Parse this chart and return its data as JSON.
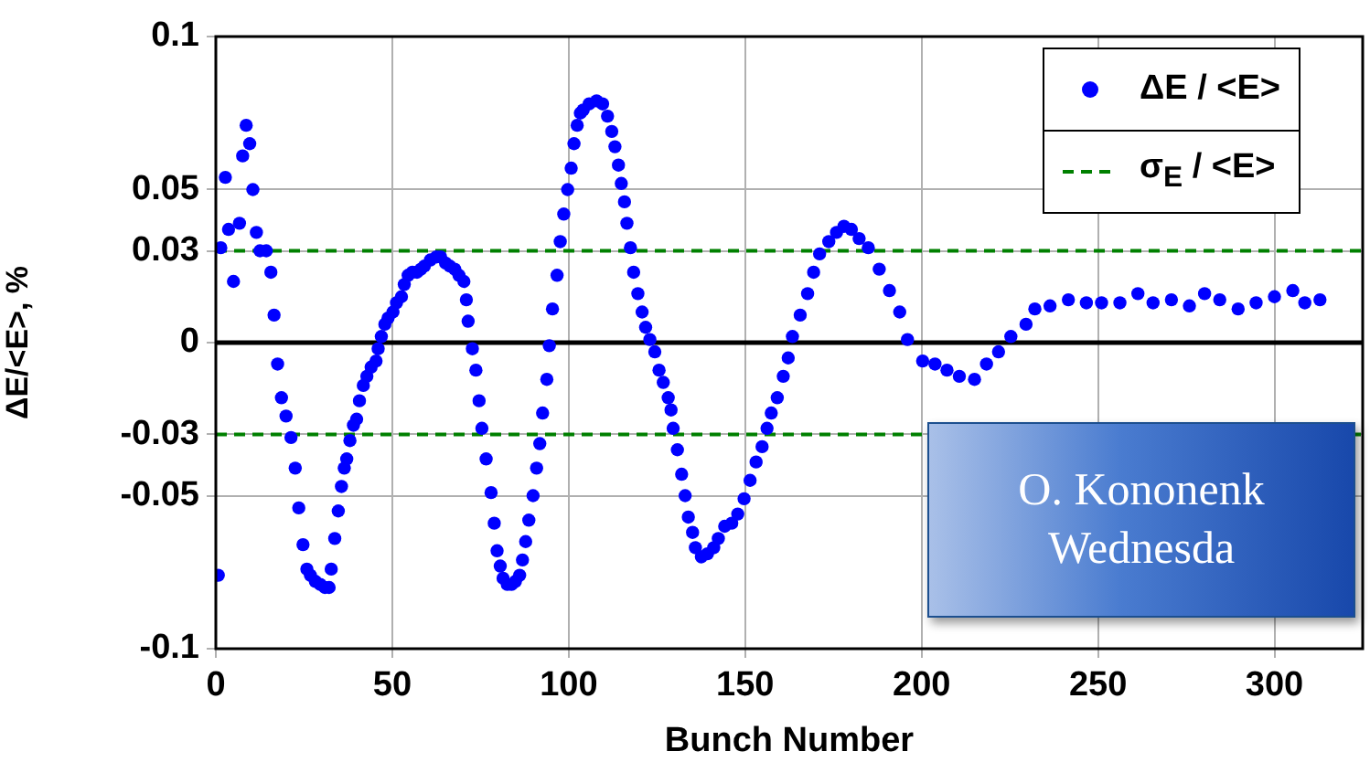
{
  "chart_data": {
    "type": "scatter",
    "xlabel": "Bunch Number",
    "ylabel": "ΔE/<E>, %",
    "xlim": [
      0,
      325
    ],
    "xticks": [
      0,
      50,
      100,
      150,
      200,
      250,
      300
    ],
    "ylim": [
      -0.1,
      0.1
    ],
    "yticks": [
      -0.1,
      -0.05,
      -0.03,
      0,
      0.03,
      0.05,
      0.1
    ],
    "grid": true,
    "legend": "top right",
    "marker": "circle",
    "ref_lines": [
      {
        "axis": "y",
        "value": 0,
        "color": "#000000",
        "line_style": "solid"
      }
    ],
    "annotations": [
      "O. Kononenk",
      "Wednesda"
    ],
    "series": [
      {
        "name": "σ$_{E}$ / <E>",
        "type": "line",
        "color": "#008000",
        "line_style": "dashed",
        "marker": "none",
        "x": [
          0,
          325
        ],
        "values": [
          0.03,
          0.03
        ]
      },
      {
        "type": "line",
        "color": "#008000",
        "line_style": "dashed",
        "marker": "none",
        "x": [
          0,
          325
        ],
        "values": [
          -0.03,
          -0.03
        ]
      },
      {
        "name": "ΔE / <E>",
        "color": "#0000ff",
        "x": [
          0.7,
          1.4,
          2.7,
          3.6,
          5.0,
          6.7,
          7.6,
          8.6,
          9.6,
          10.5,
          11.5,
          12.5,
          14.3,
          15.6,
          16.5,
          17.5,
          18.6,
          19.9,
          21.3,
          22.5,
          23.5,
          24.7,
          25.8,
          26.8,
          28.2,
          29.6,
          30.9,
          32.1,
          32.7,
          33.7,
          34.7,
          35.6,
          36.4,
          37.1,
          38.0,
          39.0,
          39.9,
          40.7,
          41.8,
          42.8,
          44.0,
          45.4,
          46.0,
          46.9,
          47.9,
          48.8,
          50.2,
          51.2,
          52.6,
          53.4,
          54.5,
          55.7,
          57.0,
          58.1,
          59.1,
          60.8,
          62.5,
          63.7,
          65.1,
          66.3,
          67.7,
          68.9,
          70.3,
          71.0,
          71.5,
          72.7,
          73.7,
          74.6,
          75.4,
          76.6,
          78.0,
          78.9,
          79.7,
          80.6,
          81.4,
          82.6,
          83.8,
          84.9,
          86.1,
          86.9,
          87.8,
          88.7,
          89.9,
          90.9,
          91.8,
          92.6,
          93.8,
          94.5,
          95.4,
          96.7,
          97.6,
          98.6,
          99.7,
          100.7,
          101.5,
          102.4,
          103.3,
          104.1,
          105.8,
          107.9,
          109.6,
          111.0,
          112.2,
          113.1,
          114.1,
          114.9,
          115.8,
          116.5,
          117.5,
          118.4,
          119.6,
          120.8,
          121.8,
          123.0,
          124.4,
          125.6,
          126.8,
          128.2,
          129.0,
          129.6,
          130.8,
          132.0,
          133.0,
          133.9,
          135.1,
          135.9,
          137.6,
          139.3,
          141.1,
          142.4,
          144.2,
          146.2,
          147.9,
          149.7,
          151.4,
          153.1,
          154.8,
          156.2,
          157.4,
          159.1,
          160.8,
          162.2,
          163.4,
          165.6,
          167.7,
          169.4,
          171.1,
          173.7,
          175.9,
          178.0,
          180.1,
          182.3,
          184.9,
          188.0,
          190.9,
          193.8,
          196.0,
          200.3,
          203.8,
          207.2,
          210.7,
          215.0,
          218.4,
          221.8,
          225.3,
          229.6,
          232.1,
          236.4,
          241.6,
          246.7,
          251.0,
          256.2,
          261.3,
          265.6,
          270.8,
          275.9,
          280.2,
          284.5,
          289.7,
          294.8,
          300.0,
          305.2,
          308.6,
          312.9
        ],
        "values": [
          -0.076,
          0.031,
          0.054,
          0.037,
          0.02,
          0.039,
          0.061,
          0.071,
          0.065,
          0.05,
          0.036,
          0.03,
          0.03,
          0.023,
          0.009,
          -0.007,
          -0.018,
          -0.024,
          -0.031,
          -0.041,
          -0.054,
          -0.066,
          -0.074,
          -0.076,
          -0.078,
          -0.079,
          -0.08,
          -0.08,
          -0.074,
          -0.064,
          -0.055,
          -0.047,
          -0.041,
          -0.038,
          -0.032,
          -0.027,
          -0.025,
          -0.019,
          -0.014,
          -0.011,
          -0.008,
          -0.006,
          -0.002,
          0.002,
          0.006,
          0.008,
          0.01,
          0.013,
          0.015,
          0.019,
          0.022,
          0.023,
          0.023,
          0.024,
          0.025,
          0.027,
          0.028,
          0.028,
          0.026,
          0.025,
          0.024,
          0.022,
          0.02,
          0.014,
          0.007,
          -0.002,
          -0.009,
          -0.019,
          -0.028,
          -0.038,
          -0.049,
          -0.059,
          -0.068,
          -0.073,
          -0.077,
          -0.079,
          -0.079,
          -0.078,
          -0.076,
          -0.071,
          -0.065,
          -0.058,
          -0.05,
          -0.041,
          -0.033,
          -0.023,
          -0.012,
          -0.001,
          0.011,
          0.022,
          0.033,
          0.042,
          0.05,
          0.057,
          0.065,
          0.071,
          0.075,
          0.076,
          0.078,
          0.079,
          0.078,
          0.074,
          0.069,
          0.064,
          0.058,
          0.052,
          0.046,
          0.039,
          0.031,
          0.023,
          0.016,
          0.01,
          0.005,
          0.001,
          -0.003,
          -0.009,
          -0.013,
          -0.018,
          -0.022,
          -0.028,
          -0.035,
          -0.043,
          -0.05,
          -0.057,
          -0.062,
          -0.067,
          -0.07,
          -0.069,
          -0.067,
          -0.064,
          -0.06,
          -0.059,
          -0.056,
          -0.051,
          -0.045,
          -0.039,
          -0.034,
          -0.028,
          -0.023,
          -0.018,
          -0.011,
          -0.005,
          0.002,
          0.009,
          0.016,
          0.023,
          0.029,
          0.033,
          0.036,
          0.038,
          0.037,
          0.034,
          0.031,
          0.024,
          0.017,
          0.01,
          0.001,
          -0.006,
          -0.007,
          -0.009,
          -0.011,
          -0.012,
          -0.007,
          -0.003,
          0.002,
          0.006,
          0.011,
          0.012,
          0.014,
          0.013,
          0.013,
          0.013,
          0.016,
          0.013,
          0.014,
          0.012,
          0.016,
          0.014,
          0.011,
          0.013,
          0.015,
          0.017,
          0.013,
          0.014
        ]
      }
    ]
  }
}
